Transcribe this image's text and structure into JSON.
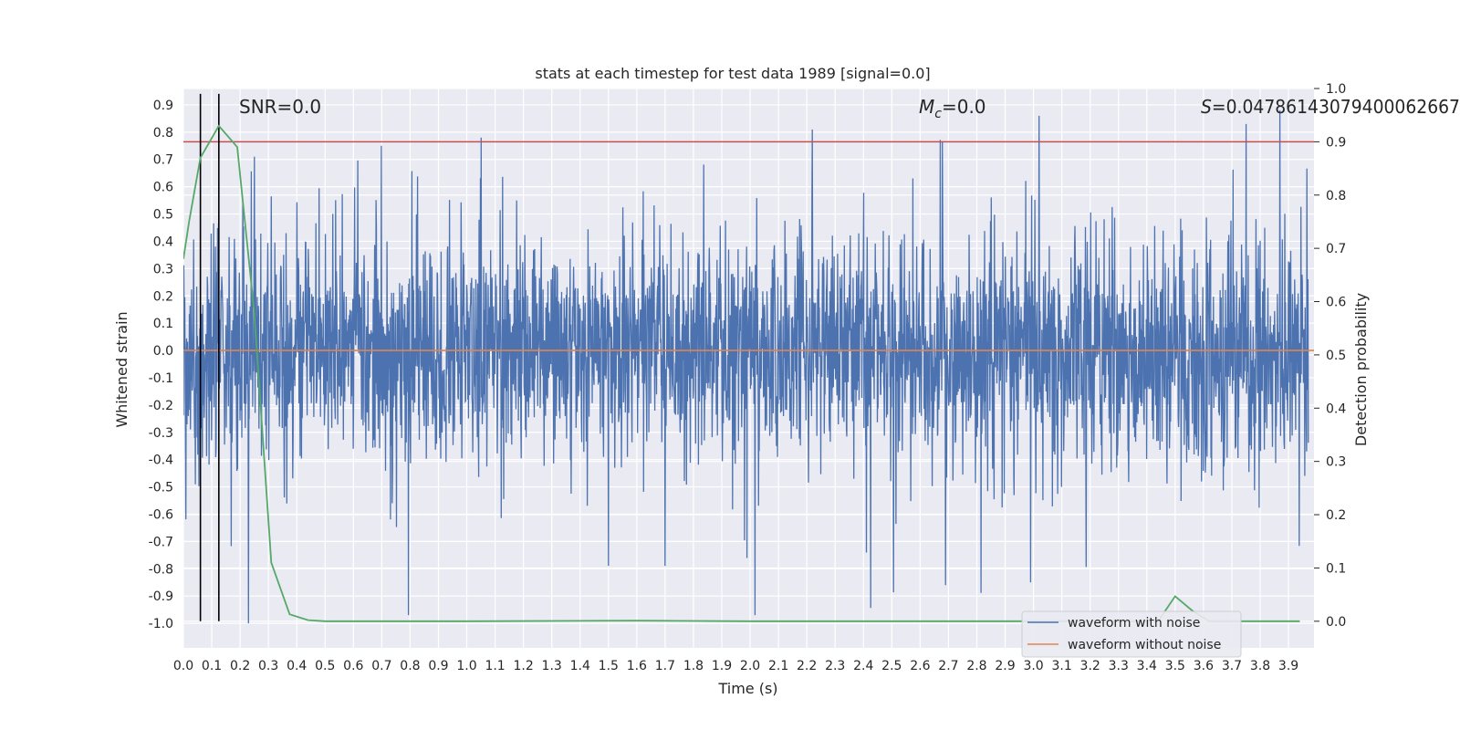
{
  "chart_data": {
    "type": "line",
    "title": "stats at each timestep for test data 1989 [signal=0.0]",
    "xlabel": "Time (s)",
    "ylabel": "Whitened strain",
    "y2label": "Detection probability",
    "xlim": [
      0.0,
      3.99
    ],
    "ylim": [
      -1.09,
      0.96
    ],
    "y2lim": [
      -0.05,
      1.0
    ],
    "xticks": [
      "0.0",
      "0.1",
      "0.2",
      "0.3",
      "0.4",
      "0.5",
      "0.6",
      "0.7",
      "0.8",
      "0.9",
      "1.0",
      "1.1",
      "1.2",
      "1.3",
      "1.4",
      "1.5",
      "1.6",
      "1.7",
      "1.8",
      "1.9",
      "2.0",
      "2.1",
      "2.2",
      "2.3",
      "2.4",
      "2.5",
      "2.6",
      "2.7",
      "2.8",
      "2.9",
      "3.0",
      "3.1",
      "3.2",
      "3.3",
      "3.4",
      "3.5",
      "3.6",
      "3.7",
      "3.8",
      "3.9"
    ],
    "yticks": [
      "0.9",
      "0.8",
      "0.7",
      "0.6",
      "0.5",
      "0.4",
      "0.3",
      "0.2",
      "0.1",
      "0.0",
      "-0.1",
      "-0.2",
      "-0.3",
      "-0.4",
      "-0.5",
      "-0.6",
      "-0.7",
      "-0.8",
      "-0.9",
      "-1.0"
    ],
    "y2ticks": [
      "1.0",
      "0.9",
      "0.8",
      "0.7",
      "0.6",
      "0.5",
      "0.4",
      "0.3",
      "0.2",
      "0.1",
      "0.0"
    ],
    "annotations": {
      "snr": "SNR=0.0",
      "mc_symbol": "M",
      "mc_sub": "c",
      "mc_value": "=0.0",
      "s_symbol": "S",
      "s_value": "=0.04786143079400062667"
    },
    "threshold_line": {
      "axis": "y2",
      "value": 0.9,
      "color": "#c44e52"
    },
    "vertical_markers": [
      0.06,
      0.125
    ],
    "series": [
      {
        "name": "waveform with noise",
        "color": "#4c72b0",
        "axis": "y",
        "style": "dense noise, approx. |amplitude| 0.3 typical, peaks to ~0.88 / -1.0",
        "notable_peaks": [
          [
            0.23,
            -1.0
          ],
          [
            0.25,
            0.71
          ],
          [
            2.22,
            0.81
          ],
          [
            3.02,
            0.86
          ],
          [
            3.75,
            0.83
          ],
          [
            3.87,
            0.88
          ],
          [
            2.69,
            -0.86
          ],
          [
            2.99,
            -0.85
          ],
          [
            1.5,
            -0.79
          ],
          [
            1.7,
            -0.79
          ]
        ]
      },
      {
        "name": "waveform without noise",
        "color": "#dd8452",
        "axis": "y",
        "points": [
          [
            0.0,
            0.0
          ],
          [
            3.99,
            0.0
          ]
        ]
      },
      {
        "name": "detection probability",
        "color": "#55a868",
        "axis": "y2",
        "in_legend": false,
        "points": [
          [
            0.0,
            0.68
          ],
          [
            0.02,
            0.75
          ],
          [
            0.06,
            0.87
          ],
          [
            0.125,
            0.93
          ],
          [
            0.19,
            0.89
          ],
          [
            0.25,
            0.58
          ],
          [
            0.31,
            0.11
          ],
          [
            0.375,
            0.013
          ],
          [
            0.44,
            0.002
          ],
          [
            0.5,
            0.0
          ],
          [
            1.0,
            0.0
          ],
          [
            1.6,
            0.001
          ],
          [
            2.0,
            0.0
          ],
          [
            3.0,
            0.0
          ],
          [
            3.44,
            0.0
          ],
          [
            3.5,
            0.047
          ],
          [
            3.56,
            0.02
          ],
          [
            3.62,
            0.0
          ],
          [
            3.94,
            0.0
          ]
        ]
      }
    ],
    "legend": {
      "placement": "lower-right",
      "entries": [
        "waveform with noise",
        "waveform without noise"
      ]
    },
    "grid": true
  }
}
